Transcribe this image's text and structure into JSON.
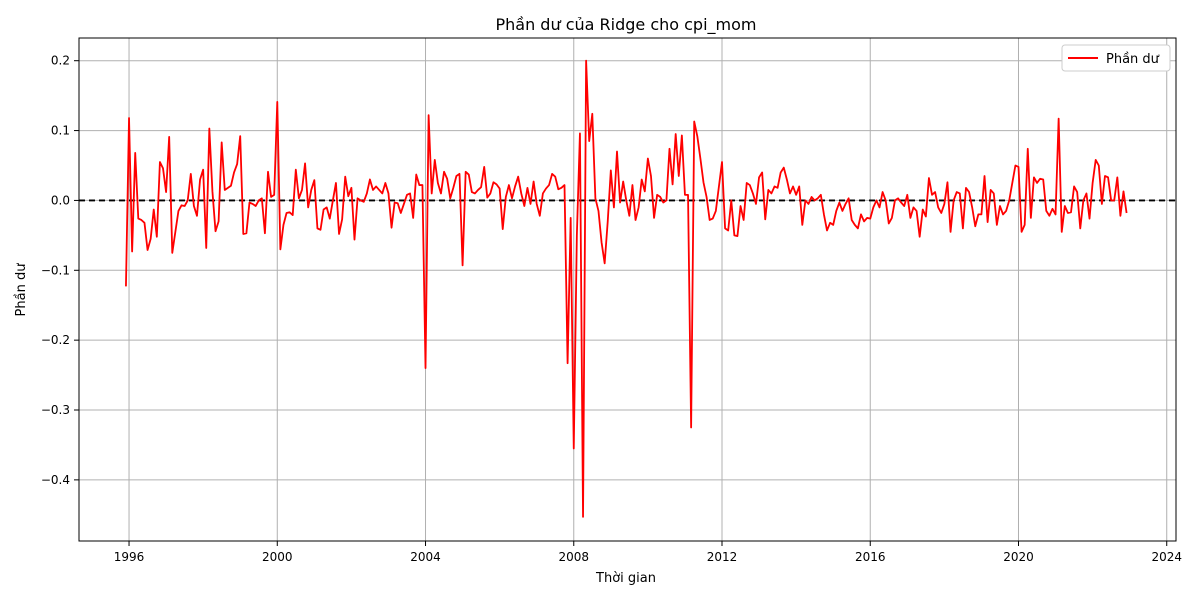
{
  "chart_data": {
    "type": "line",
    "title": "Phần dư của Ridge cho cpi_mom",
    "xlabel": "Thời gian",
    "ylabel": "Phần dư",
    "xlim": [
      1994.65,
      2024.25
    ],
    "ylim": [
      -0.4875,
      0.2325
    ],
    "x_ticks": [
      1996,
      2000,
      2004,
      2008,
      2012,
      2016,
      2020,
      2024
    ],
    "y_ticks": [
      -0.4,
      -0.3,
      -0.2,
      -0.1,
      0.0,
      0.1,
      0.2
    ],
    "y_tick_labels": [
      "−0.4",
      "−0.3",
      "−0.2",
      "−0.1",
      "0.0",
      "0.1",
      "0.2"
    ],
    "grid": true,
    "legend": {
      "placement": "top-right",
      "entries": [
        "Phần dư"
      ]
    },
    "reference_line": {
      "y": 0.0,
      "style": "dashed",
      "color": "#000000"
    },
    "series": [
      {
        "name": "Phần dư",
        "color": "#ff0000",
        "start": "1995-12",
        "frequency": "monthly",
        "values": [
          -0.123,
          0.118,
          -0.073,
          0.068,
          -0.026,
          -0.028,
          -0.032,
          -0.071,
          -0.055,
          -0.013,
          -0.052,
          0.055,
          0.046,
          0.012,
          0.091,
          -0.075,
          -0.045,
          -0.015,
          -0.007,
          -0.008,
          0.0,
          0.038,
          -0.008,
          -0.022,
          0.03,
          0.044,
          -0.068,
          0.103,
          0.013,
          -0.044,
          -0.03,
          0.083,
          0.015,
          0.018,
          0.021,
          0.04,
          0.052,
          0.092,
          -0.048,
          -0.047,
          -0.003,
          -0.005,
          -0.008,
          0.0,
          0.003,
          -0.047,
          0.041,
          0.005,
          0.008,
          0.141,
          -0.07,
          -0.035,
          -0.018,
          -0.017,
          -0.021,
          0.044,
          0.003,
          0.015,
          0.053,
          -0.01,
          0.015,
          0.029,
          -0.04,
          -0.042,
          -0.013,
          -0.01,
          -0.026,
          0.0,
          0.025,
          -0.048,
          -0.027,
          0.034,
          0.006,
          0.018,
          -0.056,
          0.003,
          0.0,
          -0.002,
          0.01,
          0.03,
          0.015,
          0.02,
          0.015,
          0.01,
          0.025,
          0.01,
          -0.039,
          -0.003,
          -0.004,
          -0.018,
          -0.005,
          0.008,
          0.01,
          -0.025,
          0.037,
          0.022,
          0.022,
          -0.24,
          0.122,
          0.01,
          0.058,
          0.025,
          0.01,
          0.041,
          0.031,
          0.003,
          0.018,
          0.035,
          0.038,
          -0.093,
          0.041,
          0.037,
          0.012,
          0.01,
          0.015,
          0.019,
          0.048,
          0.004,
          0.01,
          0.026,
          0.023,
          0.017,
          -0.041,
          0.005,
          0.022,
          0.003,
          0.02,
          0.034,
          0.01,
          -0.008,
          0.018,
          -0.005,
          0.027,
          -0.005,
          -0.022,
          0.01,
          0.017,
          0.022,
          0.038,
          0.034,
          0.016,
          0.018,
          0.022,
          -0.233,
          -0.025,
          -0.355,
          -0.05,
          0.096,
          -0.453,
          0.2,
          0.085,
          0.124,
          0.003,
          -0.015,
          -0.06,
          -0.09,
          -0.03,
          0.043,
          -0.01,
          0.07,
          -0.003,
          0.027,
          0.0,
          -0.022,
          0.022,
          -0.028,
          -0.01,
          0.03,
          0.013,
          0.06,
          0.035,
          -0.025,
          0.008,
          0.005,
          -0.003,
          0.0,
          0.074,
          0.023,
          0.095,
          0.035,
          0.093,
          0.008,
          0.008,
          -0.325,
          0.113,
          0.092,
          0.06,
          0.026,
          0.005,
          -0.028,
          -0.026,
          -0.015,
          0.02,
          0.055,
          -0.04,
          -0.043,
          0.0,
          -0.05,
          -0.051,
          -0.008,
          -0.028,
          0.025,
          0.022,
          0.01,
          -0.005,
          0.033,
          0.04,
          -0.027,
          0.015,
          0.01,
          0.02,
          0.018,
          0.04,
          0.047,
          0.03,
          0.01,
          0.02,
          0.008,
          0.02,
          -0.035,
          0.0,
          -0.005,
          0.005,
          0.0,
          0.003,
          0.008,
          -0.02,
          -0.043,
          -0.032,
          -0.035,
          -0.015,
          -0.003,
          -0.015,
          -0.005,
          0.003,
          -0.028,
          -0.035,
          -0.04,
          -0.02,
          -0.03,
          -0.025,
          -0.026,
          -0.01,
          0.0,
          -0.01,
          0.012,
          0.0,
          -0.033,
          -0.025,
          0.0,
          0.003,
          -0.003,
          -0.008,
          0.008,
          -0.025,
          -0.01,
          -0.015,
          -0.052,
          -0.013,
          -0.023,
          0.032,
          0.008,
          0.012,
          -0.01,
          -0.018,
          -0.005,
          0.026,
          -0.045,
          0.0,
          0.012,
          0.01,
          -0.04,
          0.018,
          0.012,
          -0.01,
          -0.037,
          -0.02,
          -0.02,
          0.035,
          -0.031,
          0.015,
          0.01,
          -0.035,
          -0.008,
          -0.02,
          -0.015,
          0.0,
          0.025,
          0.05,
          0.048,
          -0.045,
          -0.035,
          0.074,
          -0.025,
          0.033,
          0.025,
          0.031,
          0.03,
          -0.015,
          -0.022,
          -0.012,
          -0.02,
          0.117,
          -0.045,
          -0.008,
          -0.018,
          -0.017,
          0.02,
          0.012,
          -0.04,
          0.0,
          0.01,
          -0.026,
          0.025,
          0.058,
          0.05,
          -0.005,
          0.035,
          0.033,
          0.0,
          0.0,
          0.033,
          -0.022,
          0.013,
          -0.018
        ]
      }
    ]
  }
}
